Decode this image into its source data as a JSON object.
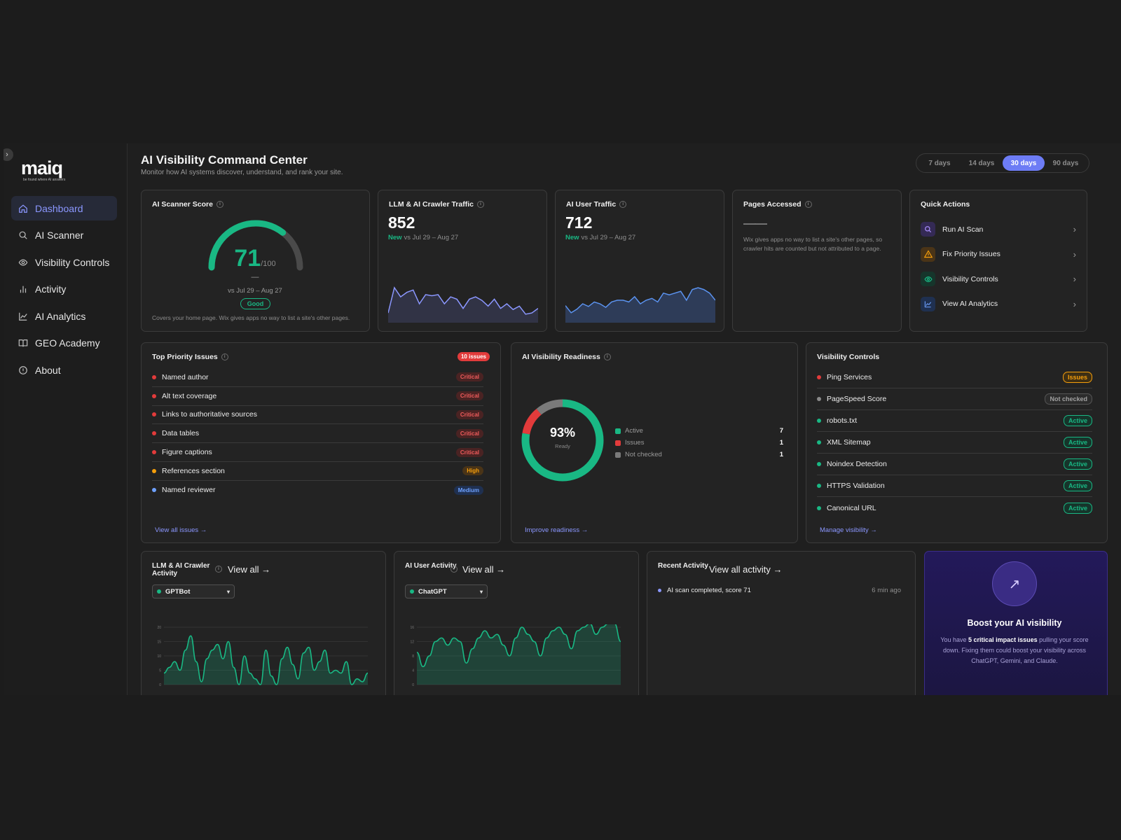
{
  "brand": {
    "logo_text": "maiq",
    "tagline": "be found where AI answers"
  },
  "colors": {
    "accent": "#6d7cf5",
    "green": "#19b884",
    "red": "#e23b3b",
    "amber": "#f59e0b",
    "blue": "#6ea1ff"
  },
  "sidebar": {
    "items": [
      {
        "label": "Dashboard",
        "icon": "home-icon",
        "active": true
      },
      {
        "label": "AI Scanner",
        "icon": "search-icon"
      },
      {
        "label": "Visibility Controls",
        "icon": "eye-icon"
      },
      {
        "label": "Activity",
        "icon": "bar-chart-icon"
      },
      {
        "label": "AI Analytics",
        "icon": "line-chart-icon"
      },
      {
        "label": "GEO Academy",
        "icon": "book-icon"
      },
      {
        "label": "About",
        "icon": "info-circle-icon"
      }
    ]
  },
  "header": {
    "title": "AI Visibility Command Center",
    "subtitle": "Monitor how AI systems discover, understand, and rank your site.",
    "ranges": [
      "7 days",
      "14 days",
      "30 days",
      "90 days"
    ],
    "selected_range": "30 days"
  },
  "score_card": {
    "title": "AI Scanner Score",
    "value": "71",
    "max": "/100",
    "score_fraction": 0.71,
    "delta": "—",
    "compare": "vs Jul 29 – Aug 27",
    "badge": "Good",
    "note": "Covers your home page. Wix gives apps no way to list a site's other pages."
  },
  "crawler_card": {
    "title": "LLM & AI Crawler Traffic",
    "value": "852",
    "new_label": "New",
    "compare": "vs Jul 29 – Aug 27",
    "spark": [
      6,
      28,
      20,
      24,
      26,
      14,
      22,
      21,
      22,
      14,
      20,
      18,
      10,
      18,
      20,
      17,
      12,
      18,
      10,
      14,
      9,
      12,
      5,
      6,
      10
    ]
  },
  "user_traffic_card": {
    "title": "AI User Traffic",
    "value": "712",
    "new_label": "New",
    "compare": "vs Jul 29 – Aug 27",
    "spark": [
      16,
      8,
      12,
      18,
      15,
      20,
      18,
      14,
      20,
      22,
      22,
      20,
      26,
      18,
      22,
      24,
      20,
      30,
      28,
      30,
      32,
      22,
      34,
      36,
      34,
      30,
      22
    ]
  },
  "pages_card": {
    "title": "Pages Accessed",
    "value": "——",
    "note": "Wix gives apps no way to list a site's other pages, so crawler hits are counted but not attributed to a page."
  },
  "quick_actions": {
    "title": "Quick Actions",
    "items": [
      {
        "label": "Run AI Scan",
        "icon": "search-icon",
        "color": "#a78bfa",
        "bg": "#342a55"
      },
      {
        "label": "Fix Priority Issues",
        "icon": "warning-icon",
        "color": "#f59e0b",
        "bg": "#4a3417"
      },
      {
        "label": "Visibility Controls",
        "icon": "eye-icon",
        "color": "#19b884",
        "bg": "#16352b"
      },
      {
        "label": "View AI Analytics",
        "icon": "line-chart-icon",
        "color": "#6ea1ff",
        "bg": "#1f3050"
      }
    ]
  },
  "issues_card": {
    "title": "Top Priority Issues",
    "badge": "10 issues",
    "items": [
      {
        "label": "Named author",
        "severity": "Critical",
        "level": "critical"
      },
      {
        "label": "Alt text coverage",
        "severity": "Critical",
        "level": "critical"
      },
      {
        "label": "Links to authoritative sources",
        "severity": "Critical",
        "level": "critical"
      },
      {
        "label": "Data tables",
        "severity": "Critical",
        "level": "critical"
      },
      {
        "label": "Figure captions",
        "severity": "Critical",
        "level": "critical"
      },
      {
        "label": "References section",
        "severity": "High",
        "level": "high"
      },
      {
        "label": "Named reviewer",
        "severity": "Medium",
        "level": "medium"
      }
    ],
    "link": "View all issues →"
  },
  "readiness_card": {
    "title": "AI Visibility Readiness",
    "percent": "93%",
    "label": "Ready",
    "legend": [
      {
        "label": "Active",
        "value": "7",
        "color": "#19b884"
      },
      {
        "label": "Issues",
        "value": "1",
        "color": "#e23b3b"
      },
      {
        "label": "Not checked",
        "value": "1",
        "color": "#7a7a7a"
      }
    ],
    "link": "Improve readiness →"
  },
  "visibility_card": {
    "title": "Visibility Controls",
    "items": [
      {
        "label": "Ping Services",
        "status": "Issues",
        "level": "issues"
      },
      {
        "label": "PageSpeed Score",
        "status": "Not checked",
        "level": "notchecked"
      },
      {
        "label": "robots.txt",
        "status": "Active",
        "level": "active"
      },
      {
        "label": "XML Sitemap",
        "status": "Active",
        "level": "active"
      },
      {
        "label": "Noindex Detection",
        "status": "Active",
        "level": "active"
      },
      {
        "label": "HTTPS Validation",
        "status": "Active",
        "level": "active"
      },
      {
        "label": "Canonical URL",
        "status": "Active",
        "level": "active"
      }
    ],
    "link": "Manage visibility →"
  },
  "crawler_activity": {
    "title": "LLM & AI Crawler Activity",
    "view_all": "View all →",
    "selected_bot": "GPTBot",
    "y_ticks": [
      "20",
      "15",
      "10",
      "5",
      "0"
    ],
    "series": [
      4,
      6,
      8,
      5,
      12,
      17,
      8,
      1,
      9,
      12,
      14,
      9,
      15,
      6,
      0,
      10,
      4,
      2,
      0,
      12,
      3,
      0,
      9,
      13,
      7,
      2,
      11,
      13,
      5,
      8,
      12,
      4,
      5,
      4,
      8,
      0,
      2,
      1,
      4
    ]
  },
  "user_activity": {
    "title": "AI User Activity",
    "view_all": "View all →",
    "selected_source": "ChatGPT",
    "y_ticks": [
      "16",
      "12",
      "8",
      "4",
      "0"
    ],
    "series": [
      9,
      5,
      8,
      12,
      13,
      11,
      13,
      12,
      6,
      10,
      13,
      15,
      13,
      14,
      11,
      8,
      13,
      16,
      14,
      12,
      8,
      13,
      15,
      16,
      14,
      10,
      15,
      16,
      17,
      14,
      16,
      17,
      17,
      12
    ]
  },
  "recent_activity": {
    "title": "Recent Activity",
    "view_all": "View all activity →",
    "items": [
      {
        "text": "AI scan completed, score 71",
        "time": "6 min ago"
      }
    ]
  },
  "boost": {
    "title": "Boost your AI visibility",
    "text_before": "You have ",
    "text_strong": "5 critical impact issues",
    "text_after": " pulling your score down. Fixing them could boost your visibility across ChatGPT, Gemini, and Claude."
  }
}
